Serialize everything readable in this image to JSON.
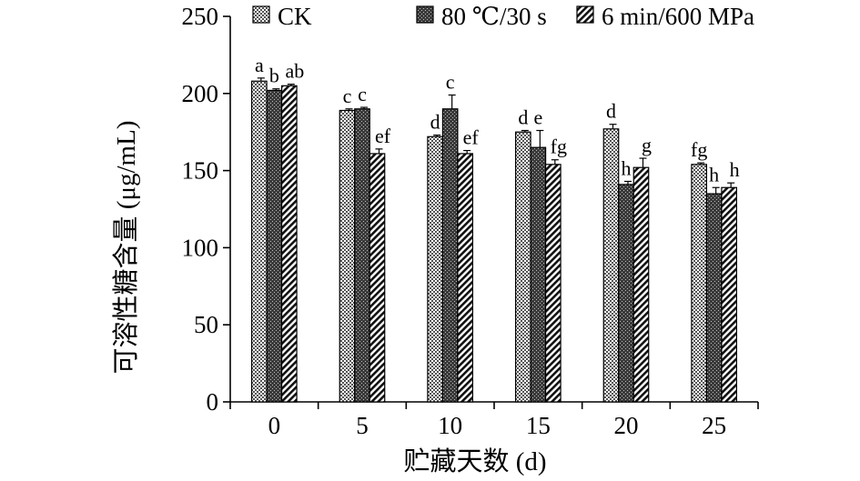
{
  "chart_data": {
    "type": "bar",
    "xlabel": "贮藏天数 (d)",
    "ylabel": "可溶性糖含量 (μg/mL)",
    "ylim": [
      0,
      250
    ],
    "yticks": [
      0,
      50,
      100,
      150,
      200,
      250
    ],
    "categories": [
      "0",
      "5",
      "10",
      "15",
      "20",
      "25"
    ],
    "grid": false,
    "legend_position": "top",
    "series": [
      {
        "name": "CK",
        "pattern": "dots",
        "values": [
          208,
          189,
          172,
          175,
          177,
          154
        ],
        "errors": [
          2,
          1,
          1,
          1,
          3,
          1
        ],
        "labels": [
          "a",
          "c",
          "d",
          "d",
          "d",
          "fg"
        ]
      },
      {
        "name": "80 ℃/30 s",
        "pattern": "dark-dots",
        "values": [
          202,
          190,
          190,
          165,
          141,
          135
        ],
        "errors": [
          1,
          1,
          9,
          11,
          2,
          4
        ],
        "labels": [
          "b",
          "c",
          "c",
          "e",
          "h",
          "h"
        ]
      },
      {
        "name": "6 min/600 MPa",
        "pattern": "diagonal-lines",
        "values": [
          205,
          161,
          161,
          154,
          152,
          139
        ],
        "errors": [
          1,
          3,
          2,
          3,
          6,
          3
        ],
        "labels": [
          "ab",
          "ef",
          "ef",
          "fg",
          "g",
          "h"
        ]
      }
    ]
  }
}
